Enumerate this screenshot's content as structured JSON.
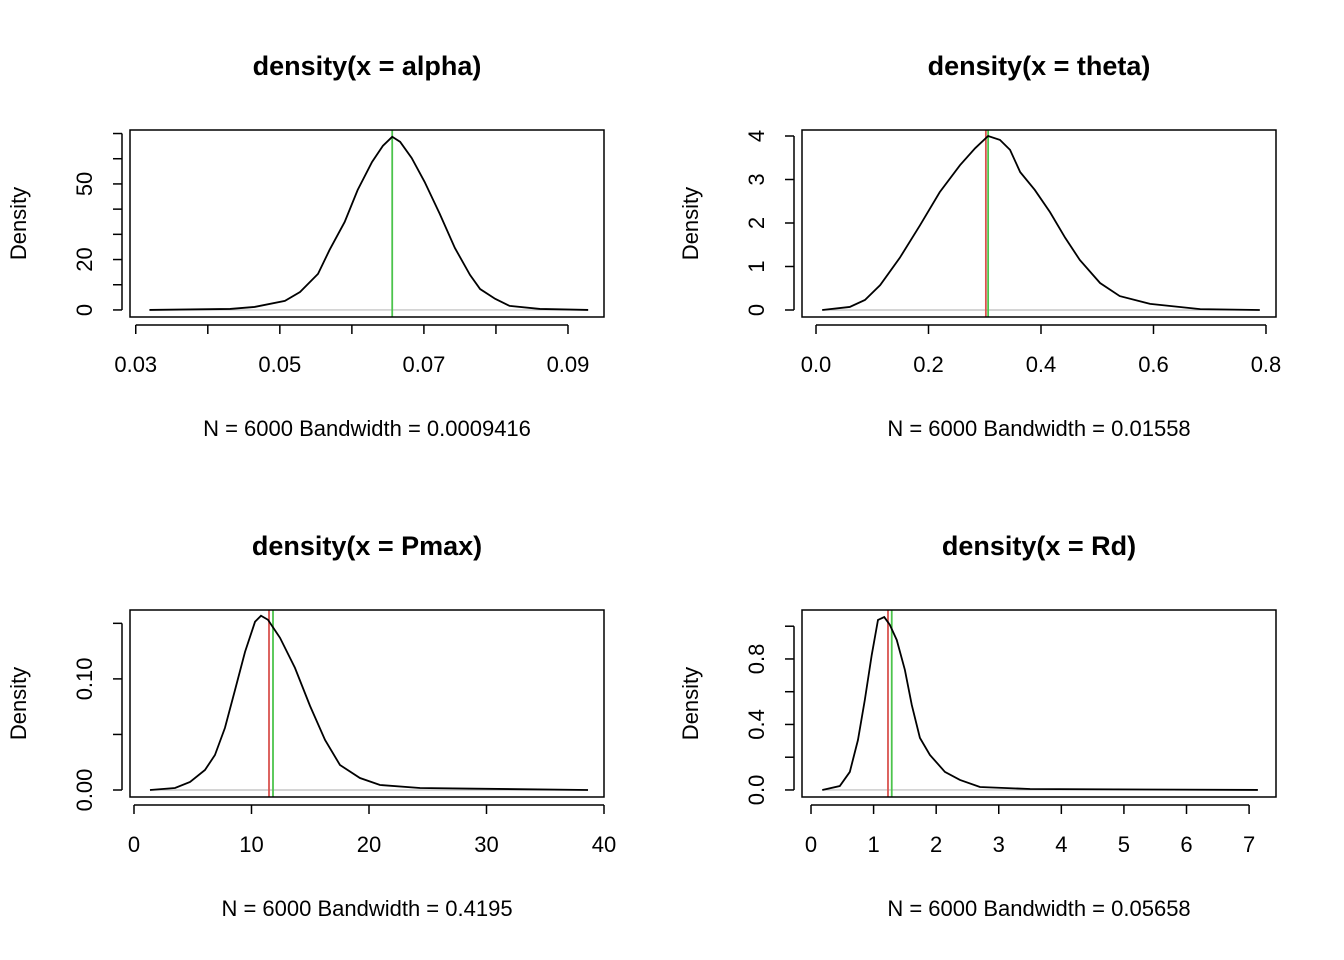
{
  "chart_data": [
    {
      "type": "line",
      "title": "density(x = alpha)",
      "xlabel": "N = 6000   Bandwidth = 0.0009416",
      "ylabel": "Density",
      "x": [
        0.0319,
        0.0431,
        0.0465,
        0.0507,
        0.0528,
        0.0553,
        0.0569,
        0.059,
        0.0608,
        0.0628,
        0.0643,
        0.0656,
        0.0667,
        0.0683,
        0.0701,
        0.0722,
        0.0743,
        0.0764,
        0.0778,
        0.0799,
        0.0819,
        0.0861,
        0.0928
      ],
      "series": [
        {
          "color": "#000000",
          "values": [
            0,
            0.4,
            1.2,
            3.6,
            7.1,
            14.3,
            23.8,
            34.9,
            47.6,
            58.7,
            65.1,
            68.7,
            66.7,
            60.3,
            50.8,
            38.1,
            24.6,
            13.9,
            8.3,
            4.4,
            1.6,
            0.4,
            0
          ]
        }
      ],
      "xlim": [
        0.0292,
        0.095
      ],
      "ylim": [
        -2.8,
        71.4
      ],
      "xticks": [
        0.03,
        0.05,
        0.07,
        0.09
      ],
      "xminorticks": [
        0.04,
        0.06,
        0.08
      ],
      "yticks": [
        0,
        20,
        50
      ],
      "yminorticks": [
        10,
        30,
        40,
        60,
        70
      ],
      "vlines": [
        {
          "color": "#4cc44c",
          "value": 0.0656
        }
      ],
      "zero_line": true
    },
    {
      "type": "line",
      "title": "density(x = theta)",
      "xlabel": "N = 6000   Bandwidth = 0.01558",
      "ylabel": "Density",
      "x": [
        0.011,
        0.06,
        0.087,
        0.114,
        0.149,
        0.185,
        0.22,
        0.256,
        0.283,
        0.306,
        0.327,
        0.345,
        0.363,
        0.389,
        0.416,
        0.443,
        0.469,
        0.505,
        0.54,
        0.594,
        0.683,
        0.789
      ],
      "series": [
        {
          "color": "#000000",
          "values": [
            0,
            0.07,
            0.23,
            0.57,
            1.2,
            1.95,
            2.71,
            3.33,
            3.72,
            4.0,
            3.91,
            3.68,
            3.17,
            2.76,
            2.25,
            1.66,
            1.15,
            0.62,
            0.32,
            0.14,
            0.02,
            0
          ]
        }
      ],
      "xlim": [
        -0.0249,
        0.8178
      ],
      "ylim": [
        -0.161,
        4.138
      ],
      "xticks": [
        {
          "value": 0,
          "label": "0.0"
        },
        0.2,
        0.4,
        0.6,
        0.8
      ],
      "yticks": [
        0,
        1,
        2,
        3,
        4
      ],
      "vlines": [
        {
          "color": "#d9534f",
          "value": 0.302
        },
        {
          "color": "#4cc44c",
          "value": 0.306
        }
      ],
      "zero_line": true
    },
    {
      "type": "line",
      "title": "density(x = Pmax)",
      "xlabel": "N = 6000   Bandwidth = 0.4195",
      "ylabel": "Density",
      "x": [
        1.36,
        3.49,
        4.77,
        6.04,
        6.89,
        7.74,
        8.6,
        9.45,
        10.3,
        10.81,
        11.4,
        12.43,
        13.7,
        14.98,
        16.26,
        17.53,
        19.23,
        20.94,
        24.34,
        38.64
      ],
      "series": [
        {
          "color": "#000000",
          "values": [
            0,
            0.0018,
            0.0072,
            0.018,
            0.0315,
            0.0559,
            0.0901,
            0.1243,
            0.1514,
            0.1568,
            0.1532,
            0.1369,
            0.1099,
            0.0757,
            0.045,
            0.0225,
            0.0108,
            0.0045,
            0.0018,
            0
          ]
        }
      ],
      "xlim": [
        -0.34,
        40
      ],
      "ylim": [
        -0.0063,
        0.162
      ],
      "xticks": [
        0,
        10,
        20,
        30,
        40
      ],
      "yticks": [
        {
          "value": 0,
          "label": "0.00"
        },
        {
          "value": 0.1,
          "label": "0.10"
        }
      ],
      "yminorticks": [
        0.05,
        0.15
      ],
      "vlines": [
        {
          "color": "#d9534f",
          "value": 11.49
        },
        {
          "color": "#4cc44c",
          "value": 11.83
        }
      ],
      "zero_line": true
    },
    {
      "type": "line",
      "title": "density(x = Rd)",
      "xlabel": "N = 6000   Bandwidth = 0.05658",
      "ylabel": "Density",
      "x": [
        0.18,
        0.46,
        0.62,
        0.75,
        0.86,
        0.97,
        1.07,
        1.17,
        1.26,
        1.37,
        1.5,
        1.61,
        1.74,
        1.9,
        2.14,
        2.38,
        2.7,
        3.5,
        7.14
      ],
      "series": [
        {
          "color": "#000000",
          "values": [
            0,
            0.024,
            0.11,
            0.305,
            0.55,
            0.824,
            1.038,
            1.056,
            1.008,
            0.916,
            0.733,
            0.519,
            0.318,
            0.214,
            0.11,
            0.061,
            0.018,
            0.006,
            0
          ]
        }
      ],
      "xlim": [
        -0.144,
        7.43
      ],
      "ylim": [
        -0.043,
        1.099
      ],
      "xticks": [
        0,
        1,
        2,
        3,
        4,
        5,
        6,
        7
      ],
      "yticks": [
        {
          "value": 0,
          "label": "0.0"
        },
        0.4,
        0.8
      ],
      "yminorticks": [
        0.2,
        0.6,
        1.0
      ],
      "vlines": [
        {
          "color": "#d9534f",
          "value": 1.23
        },
        {
          "color": "#4cc44c",
          "value": 1.29
        }
      ],
      "zero_line": true
    }
  ]
}
